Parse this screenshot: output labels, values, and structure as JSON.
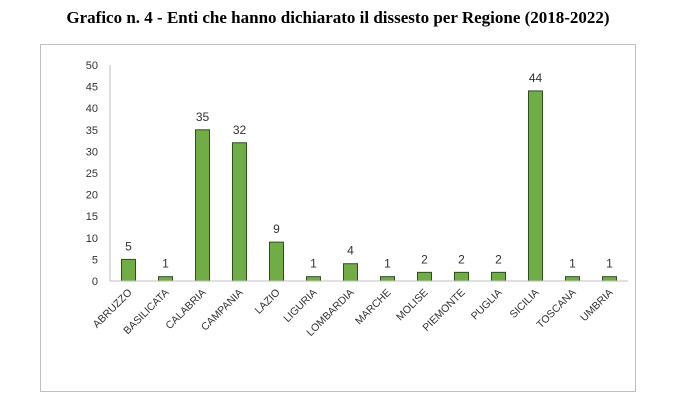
{
  "page_title": "Grafico n. 4 - Enti che hanno dichiarato il dissesto per Regione (2018-2022)",
  "chart_data": {
    "type": "bar",
    "title": "Grafico n. 4 - Enti che hanno dichiarato il dissesto per Regione (2018-2022)",
    "categories": [
      "ABRUZZO",
      "BASILICATA",
      "CALABRIA",
      "CAMPANIA",
      "LAZIO",
      "LIGURIA",
      "LOMBARDIA",
      "MARCHE",
      "MOLISE",
      "PIEMONTE",
      "PUGLIA",
      "SICILIA",
      "TOSCANA",
      "UMBRIA"
    ],
    "values": [
      5,
      1,
      35,
      32,
      9,
      1,
      4,
      1,
      2,
      2,
      2,
      44,
      1,
      1
    ],
    "yticks": [
      0,
      5,
      10,
      15,
      20,
      25,
      30,
      35,
      40,
      45,
      50
    ],
    "ylim": [
      0,
      50
    ],
    "xlabel": "",
    "ylabel": "",
    "grid": false,
    "legend": "none",
    "bar_color": "#70ad47",
    "bar_edge_color": "#2e4f1b"
  }
}
